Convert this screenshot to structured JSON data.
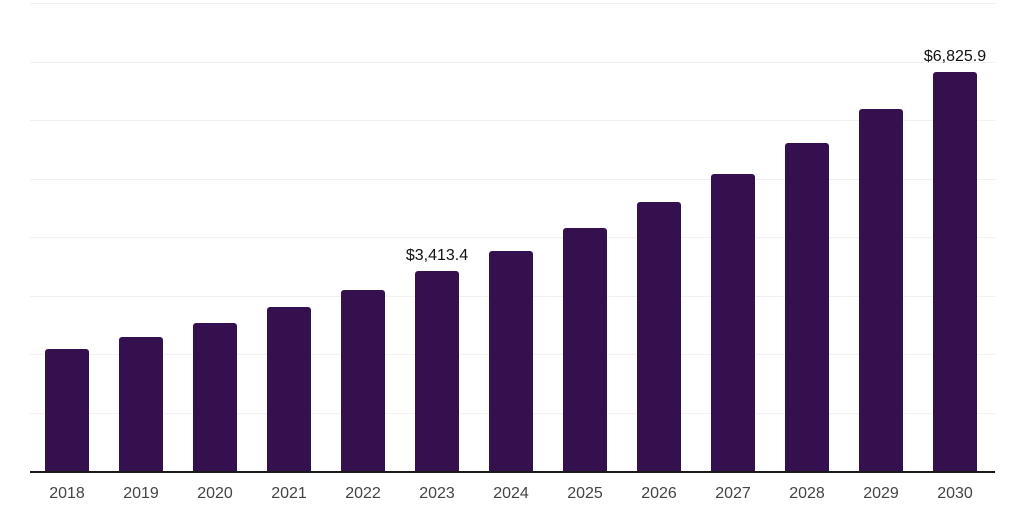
{
  "chart_data": {
    "type": "bar",
    "title": "",
    "xlabel": "",
    "ylabel": "",
    "categories": [
      "2018",
      "2019",
      "2020",
      "2021",
      "2022",
      "2023",
      "2024",
      "2025",
      "2026",
      "2027",
      "2028",
      "2029",
      "2030"
    ],
    "values": [
      2080.6,
      2297.2,
      2536.3,
      2800.3,
      3091.8,
      3413.4,
      3768.6,
      4160.8,
      4593.8,
      5071.9,
      5599.8,
      6182.6,
      6825.9
    ],
    "value_labels": [
      "",
      "",
      "",
      "",
      "",
      "$3,413.4",
      "",
      "",
      "",
      "",
      "",
      "",
      "$6,825.9"
    ],
    "ylim": [
      0,
      8000
    ],
    "gridline_step": 1000,
    "grid": "horizontal-only",
    "legend": "none",
    "colors": {
      "bar": "#34114e",
      "axis_line": "#1a1a1a",
      "gridline": "#f0f0f0",
      "tick_label": "#444444",
      "data_label": "#111111",
      "background": "#ffffff"
    }
  }
}
